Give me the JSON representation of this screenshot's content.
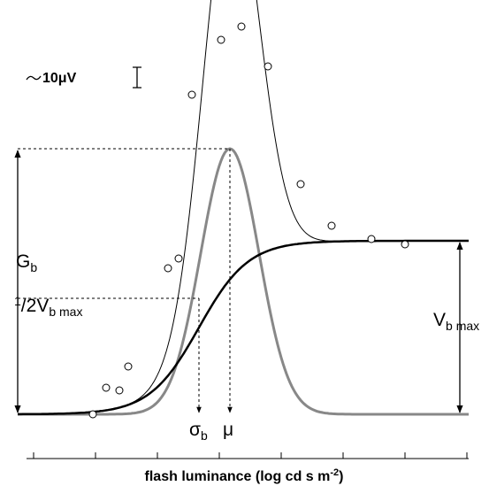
{
  "scale_bar": {
    "label": "10μV"
  },
  "gain": {
    "label": "G",
    "subscript": "b"
  },
  "half_max": {
    "fraction_numerator": "1",
    "fraction_denominator": "2",
    "label": "V",
    "subscript": "b max"
  },
  "vmax": {
    "label": "V",
    "subscript": "b max"
  },
  "sigma": {
    "label": "σ",
    "subscript": "b"
  },
  "mu": {
    "label": "μ"
  },
  "x_axis": {
    "label": "flash luminance (log cd s m",
    "superscript": "-2",
    "suffix": ")"
  }
}
